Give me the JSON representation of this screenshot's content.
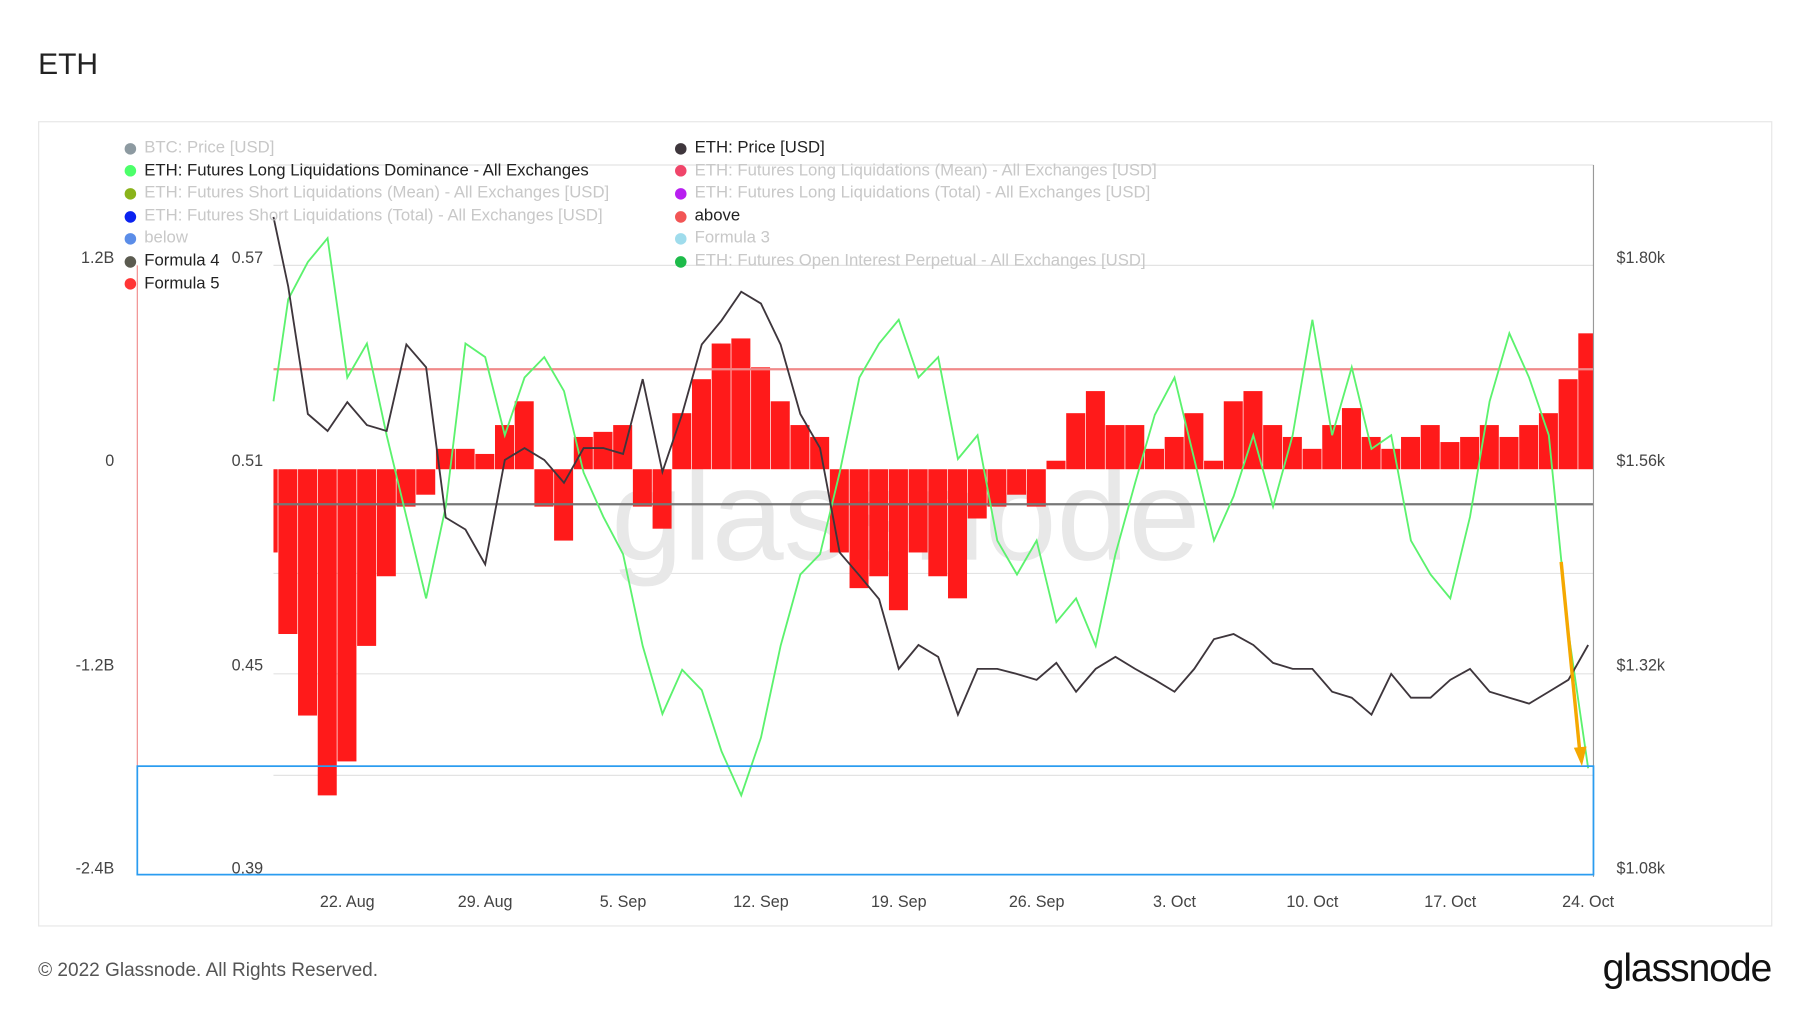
{
  "title": "ETH",
  "legend": {
    "left": [
      {
        "label": "BTC: Price [USD]",
        "color": "#8d9aa1",
        "active": false
      },
      {
        "label": "ETH: Futures Long Liquidations Dominance - All Exchanges",
        "color": "#4cff6a",
        "active": true
      },
      {
        "label": "ETH: Futures Short Liquidations (Mean) - All Exchanges [USD]",
        "color": "#8ab31a",
        "active": false
      },
      {
        "label": "ETH: Futures Short Liquidations (Total) - All Exchanges [USD]",
        "color": "#0a22f0",
        "active": false
      },
      {
        "label": "below",
        "color": "#5b8de8",
        "active": false
      },
      {
        "label": "Formula 4",
        "color": "#5b5b50",
        "active": true
      },
      {
        "label": "Formula 5",
        "color": "#ff3535",
        "active": true
      }
    ],
    "right": [
      {
        "label": "ETH: Price [USD]",
        "color": "#3e363c",
        "active": true
      },
      {
        "label": "ETH: Futures Long Liquidations (Mean) - All Exchanges [USD]",
        "color": "#f0456a",
        "active": false
      },
      {
        "label": "ETH: Futures Long Liquidations (Total) - All Exchanges [USD]",
        "color": "#b81ff0",
        "active": false
      },
      {
        "label": "above",
        "color": "#f25555",
        "active": true
      },
      {
        "label": "Formula 3",
        "color": "#9fdcec",
        "active": false
      },
      {
        "label": "ETH: Futures Open Interest Perpetual - All Exchanges [USD]",
        "color": "#1dbb4a",
        "active": false
      }
    ]
  },
  "footer": {
    "copyright": "© 2022 Glassnode. All Rights Reserved.",
    "logo": "glassnode",
    "watermark": "glassnode"
  },
  "chart_data": {
    "type": "bar+line",
    "x_tick_labels": [
      "22. Aug",
      "29. Aug",
      "5. Sep",
      "12. Sep",
      "19. Sep",
      "26. Sep",
      "3. Oct",
      "10. Oct",
      "17. Oct",
      "24. Oct"
    ],
    "x_start": "2022-08-18",
    "x_end": "2022-10-24",
    "axes": {
      "liquidations": {
        "ticks": [
          "1.2B",
          "0",
          "-1.2B",
          "-2.4B"
        ],
        "range": [
          -2.4,
          1.2
        ],
        "unit": "B"
      },
      "dominance": {
        "ticks": [
          "0.57",
          "0.51",
          "0.45",
          "0.39"
        ],
        "range": [
          0.39,
          0.57
        ]
      },
      "price": {
        "ticks": [
          "$1.80k",
          "$1.56k",
          "$1.32k",
          "$1.08k"
        ],
        "range": [
          1080,
          1800
        ]
      }
    },
    "grid": true,
    "legend_position": "top-left",
    "reference_lines": {
      "above_dominance": 0.54,
      "formula4_dominance": 0.5,
      "highlight_box_dominance": [
        0.39,
        0.423
      ]
    },
    "series": [
      {
        "name": "Formula 5",
        "type": "bar",
        "axis": "liquidations",
        "color": "#ff1a1a",
        "values": [
          -0.49,
          -0.97,
          -1.45,
          -1.92,
          -1.72,
          -1.04,
          -0.63,
          -0.22,
          -0.15,
          0.12,
          0.12,
          0.09,
          0.26,
          0.4,
          -0.22,
          -0.42,
          0.19,
          0.22,
          0.26,
          -0.22,
          -0.35,
          0.33,
          0.53,
          0.74,
          0.77,
          0.6,
          0.4,
          0.26,
          0.19,
          -0.49,
          -0.7,
          -0.63,
          -0.83,
          -0.49,
          -0.63,
          -0.76,
          -0.29,
          -0.22,
          -0.15,
          -0.22,
          0.05,
          0.33,
          0.46,
          0.26,
          0.26,
          0.12,
          0.19,
          0.33,
          0.05,
          0.4,
          0.46,
          0.26,
          0.19,
          0.12,
          0.26,
          0.36,
          0.19,
          0.12,
          0.19,
          0.26,
          0.16,
          0.19,
          0.26,
          0.19,
          0.26,
          0.33,
          0.53,
          0.8
        ]
      },
      {
        "name": "ETH: Futures Long Liquidations Dominance - All Exchanges",
        "type": "line",
        "axis": "dominance",
        "color": "#5cf26e",
        "values": [
          0.53,
          0.56,
          0.571,
          0.578,
          0.537,
          0.547,
          0.52,
          0.496,
          0.472,
          0.499,
          0.547,
          0.543,
          0.52,
          0.537,
          0.543,
          0.533,
          0.509,
          0.496,
          0.485,
          0.458,
          0.438,
          0.451,
          0.445,
          0.427,
          0.414,
          0.431,
          0.458,
          0.479,
          0.485,
          0.509,
          0.537,
          0.547,
          0.554,
          0.537,
          0.543,
          0.513,
          0.52,
          0.489,
          0.479,
          0.489,
          0.465,
          0.472,
          0.458,
          0.485,
          0.506,
          0.526,
          0.537,
          0.513,
          0.489,
          0.502,
          0.52,
          0.499,
          0.52,
          0.554,
          0.52,
          0.54,
          0.516,
          0.52,
          0.489,
          0.479,
          0.472,
          0.496,
          0.53,
          0.55,
          0.537,
          0.52,
          0.462,
          0.422
        ]
      },
      {
        "name": "ETH: Price [USD]",
        "type": "line",
        "axis": "price",
        "color": "#3e363c",
        "values": [
          1857,
          1775,
          1625,
          1605,
          1639,
          1612,
          1605,
          1707,
          1680,
          1503,
          1489,
          1448,
          1571,
          1585,
          1571,
          1544,
          1585,
          1585,
          1578,
          1666,
          1557,
          1625,
          1707,
          1735,
          1769,
          1755,
          1707,
          1625,
          1585,
          1462,
          1435,
          1407,
          1325,
          1353,
          1339,
          1271,
          1325,
          1325,
          1319,
          1312,
          1332,
          1298,
          1325,
          1339,
          1325,
          1312,
          1298,
          1325,
          1360,
          1366,
          1353,
          1332,
          1325,
          1325,
          1298,
          1291,
          1271,
          1319,
          1291,
          1291,
          1312,
          1325,
          1298,
          1291,
          1284,
          1298,
          1312,
          1353
        ]
      }
    ]
  }
}
